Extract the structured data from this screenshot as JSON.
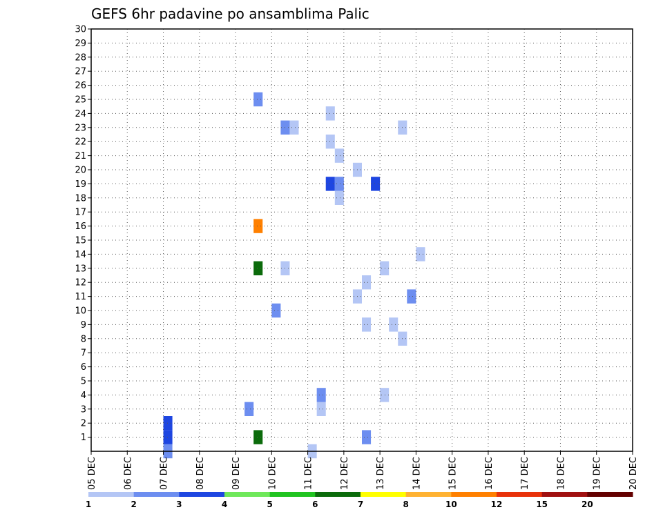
{
  "chart_data": {
    "type": "heatmap",
    "title": "GEFS 6hr padavine po ansamblima Palic",
    "x_tick_labels": [
      "05 DEC",
      "06 DEC",
      "07 DEC",
      "08 DEC",
      "09 DEC",
      "10 DEC",
      "11 DEC",
      "12 DEC",
      "13 DEC",
      "14 DEC",
      "15 DEC",
      "16 DEC",
      "17 DEC",
      "18 DEC",
      "19 DEC",
      "20 DEC"
    ],
    "x_range_days": [
      0,
      15
    ],
    "y_tick_labels": [
      "1",
      "2",
      "3",
      "4",
      "5",
      "6",
      "7",
      "8",
      "9",
      "10",
      "11",
      "12",
      "13",
      "14",
      "15",
      "16",
      "17",
      "18",
      "19",
      "20",
      "21",
      "22",
      "23",
      "24",
      "25",
      "26",
      "27",
      "28",
      "29",
      "30"
    ],
    "y_range": [
      0,
      30
    ],
    "grid": true,
    "legend": {
      "placement": "bottom",
      "levels": [
        "1",
        "2",
        "3",
        "4",
        "5",
        "6",
        "7",
        "8",
        "10",
        "12",
        "15",
        "20"
      ],
      "colors": [
        "#b4c6f5",
        "#6d8ef0",
        "#1e46e1",
        "#6fe85a",
        "#20c320",
        "#0b6b0b",
        "#ffff00",
        "#ffb232",
        "#ff8000",
        "#e8320a",
        "#a01010",
        "#640000"
      ]
    },
    "cells": [
      {
        "d": 2.0,
        "m": 0,
        "c": 2
      },
      {
        "d": 2.0,
        "m": 1,
        "c": 3
      },
      {
        "d": 2.0,
        "m": 2,
        "c": 3
      },
      {
        "d": 4.25,
        "m": 3,
        "c": 2
      },
      {
        "d": 4.5,
        "m": 1,
        "c": 6
      },
      {
        "d": 4.5,
        "m": 13,
        "c": 6
      },
      {
        "d": 4.5,
        "m": 16,
        "c": 9
      },
      {
        "d": 4.5,
        "m": 25,
        "c": 2
      },
      {
        "d": 5.0,
        "m": 10,
        "c": 2
      },
      {
        "d": 5.25,
        "m": 13,
        "c": 1
      },
      {
        "d": 5.25,
        "m": 23,
        "c": 2
      },
      {
        "d": 5.5,
        "m": 23,
        "c": 1
      },
      {
        "d": 6.0,
        "m": 0,
        "c": 1
      },
      {
        "d": 6.25,
        "m": 3,
        "c": 1
      },
      {
        "d": 6.25,
        "m": 4,
        "c": 2
      },
      {
        "d": 6.5,
        "m": 19,
        "c": 3
      },
      {
        "d": 6.5,
        "m": 22,
        "c": 1
      },
      {
        "d": 6.5,
        "m": 24,
        "c": 1
      },
      {
        "d": 6.75,
        "m": 18,
        "c": 1
      },
      {
        "d": 6.75,
        "m": 19,
        "c": 2
      },
      {
        "d": 6.75,
        "m": 21,
        "c": 1
      },
      {
        "d": 7.25,
        "m": 11,
        "c": 1
      },
      {
        "d": 7.25,
        "m": 20,
        "c": 1
      },
      {
        "d": 7.5,
        "m": 1,
        "c": 2
      },
      {
        "d": 7.5,
        "m": 9,
        "c": 1
      },
      {
        "d": 7.5,
        "m": 12,
        "c": 1
      },
      {
        "d": 7.75,
        "m": 19,
        "c": 3
      },
      {
        "d": 8.0,
        "m": 4,
        "c": 1
      },
      {
        "d": 8.0,
        "m": 13,
        "c": 1
      },
      {
        "d": 8.25,
        "m": 9,
        "c": 1
      },
      {
        "d": 8.5,
        "m": 8,
        "c": 1
      },
      {
        "d": 8.5,
        "m": 23,
        "c": 1
      },
      {
        "d": 8.75,
        "m": 11,
        "c": 2
      },
      {
        "d": 9.0,
        "m": 14,
        "c": 1
      }
    ]
  }
}
